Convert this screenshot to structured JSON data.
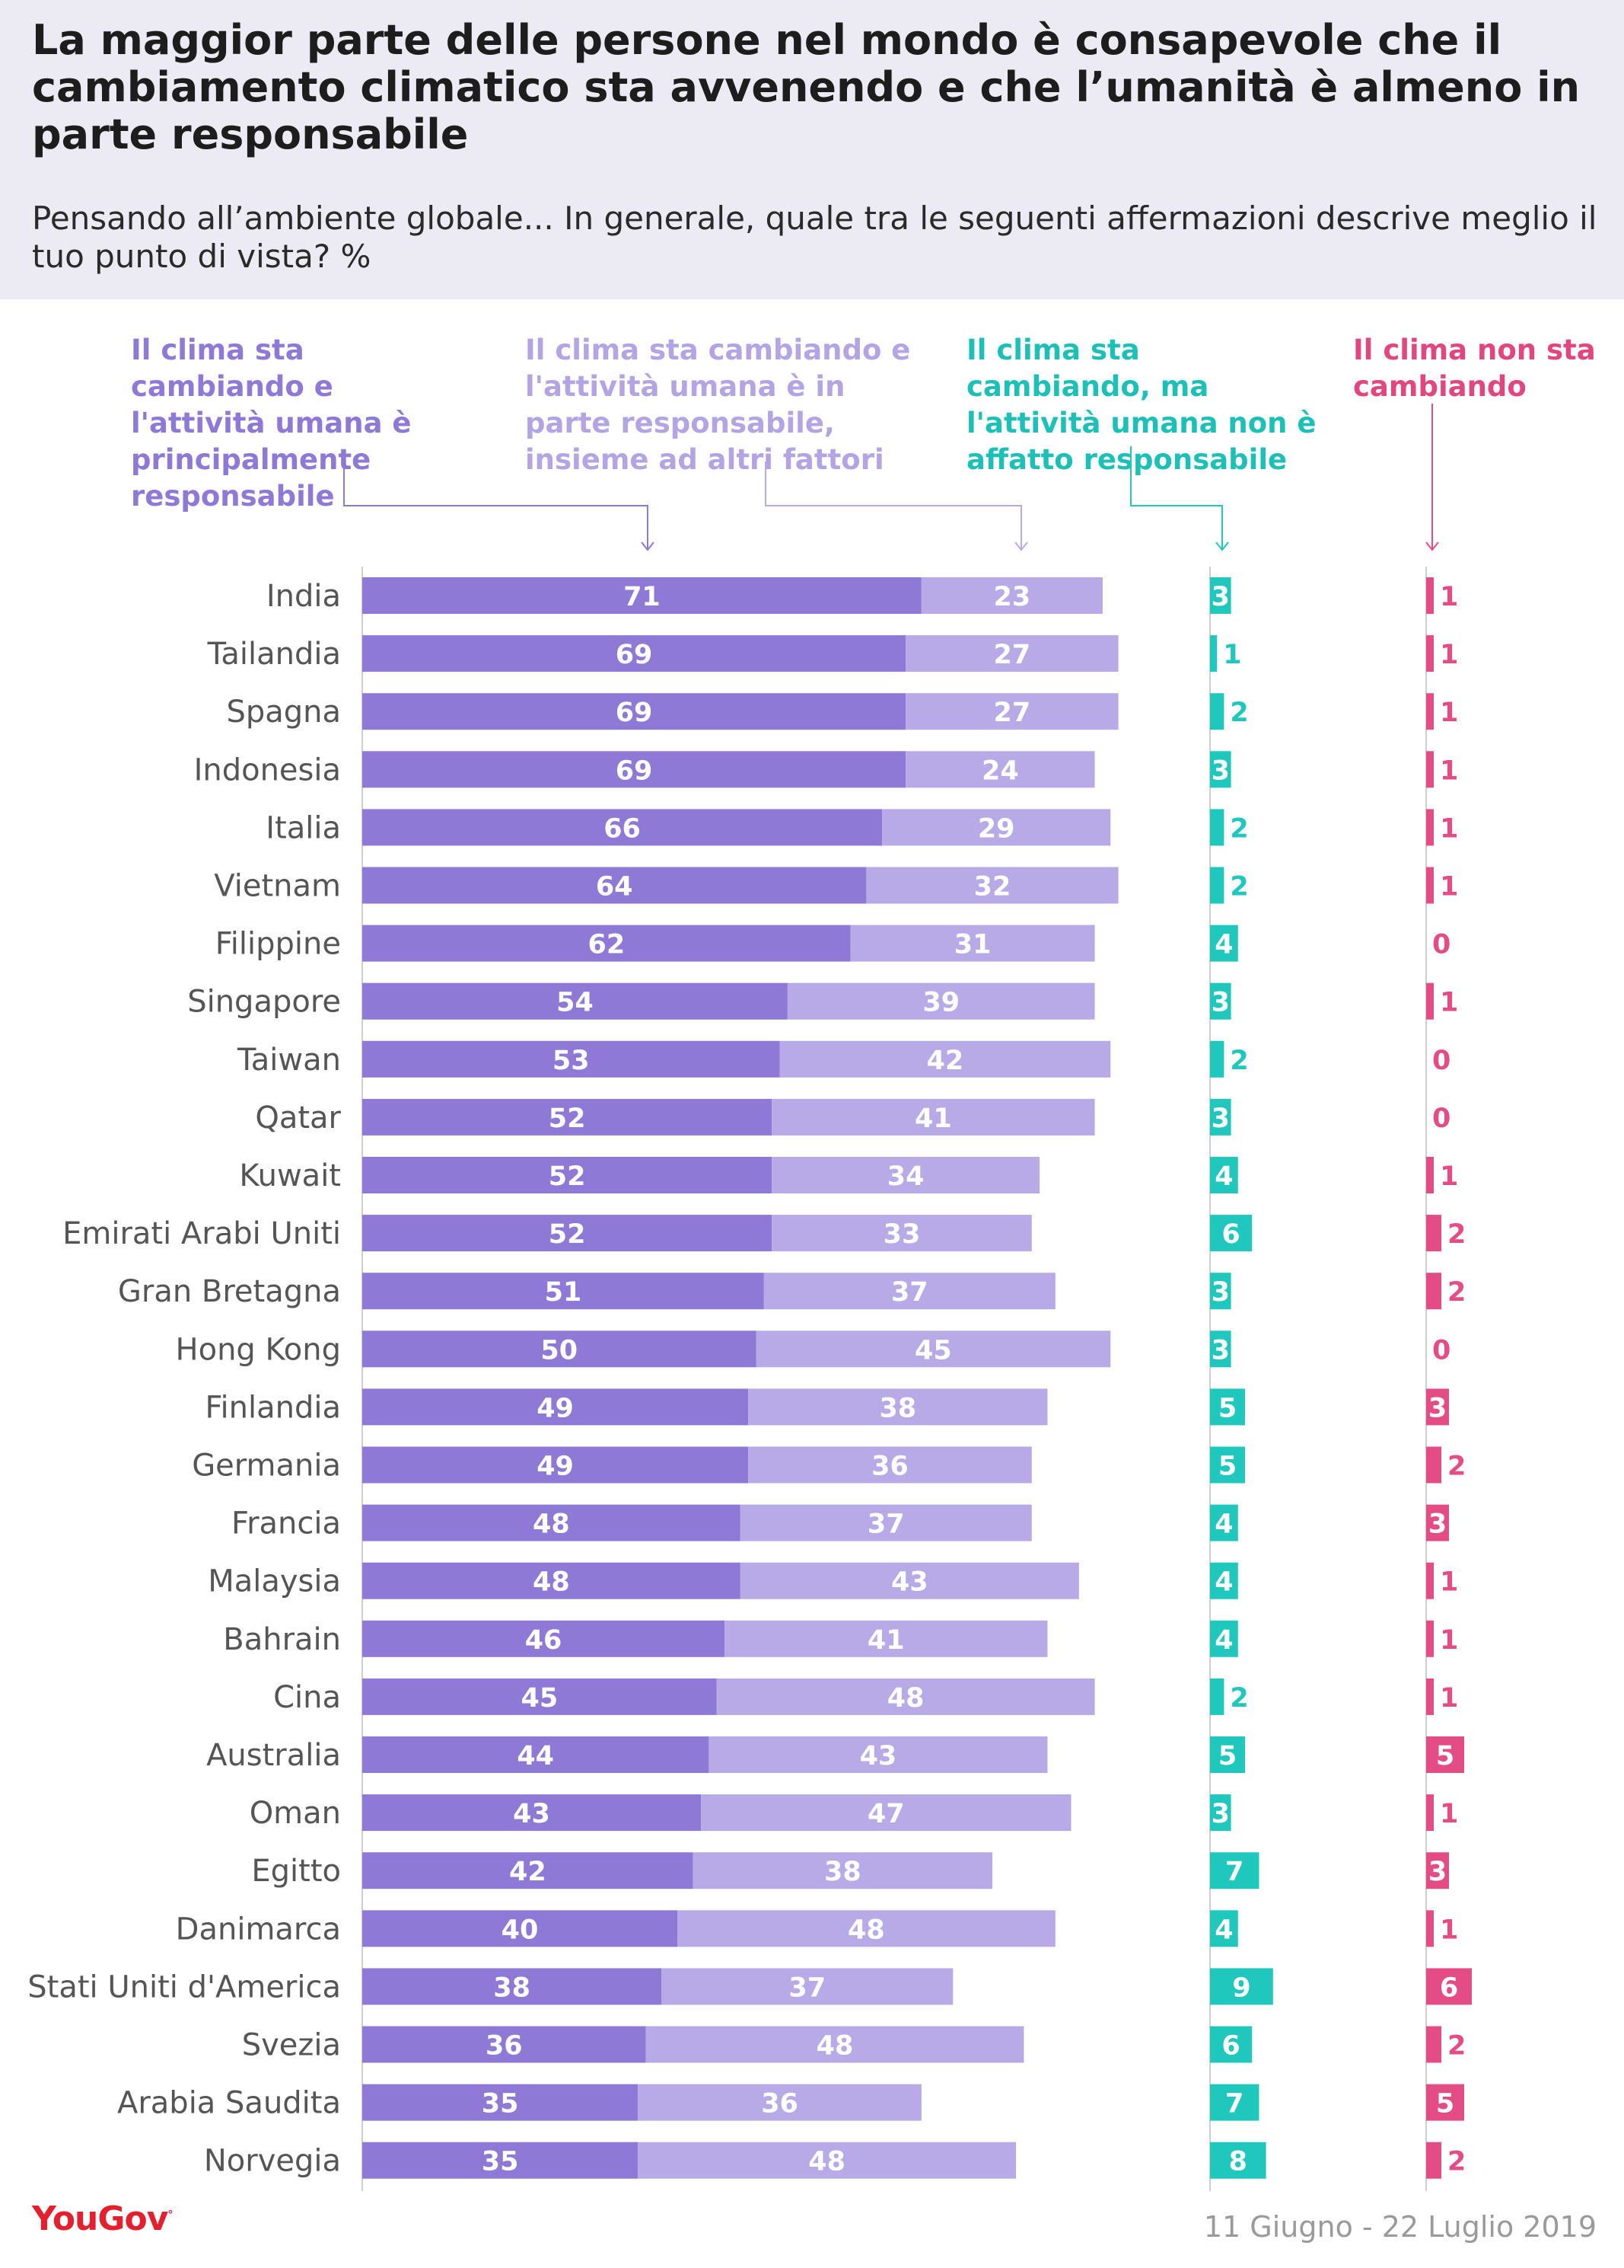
{
  "title": "La maggior parte delle persone nel mondo è consapevole che il cambiamento climatico sta avvenendo e che l’umanità è almeno in parte responsabile",
  "subtitle": "Pensando all’ambiente globale... In generale, quale tra le seguenti affermazioni descrive meglio il tuo punto di vista? %",
  "footer": {
    "logo": "YouGov",
    "date": "11 Giugno - 22 Luglio 2019"
  },
  "colors": {
    "main": "#8e79d6",
    "part": "#b8aae6",
    "natural": "#1fc7bd",
    "notchanging": "#e44c85"
  },
  "chart_data": {
    "type": "bar",
    "categories": [
      "India",
      "Tailandia",
      "Spagna",
      "Indonesia",
      "Italia",
      "Vietnam",
      "Filippine",
      "Singapore",
      "Taiwan",
      "Qatar",
      "Kuwait",
      "Emirati Arabi Uniti",
      "Gran Bretagna",
      "Hong Kong",
      "Finlandia",
      "Germania",
      "Francia",
      "Malaysia",
      "Bahrain",
      "Cina",
      "Australia",
      "Oman",
      "Egitto",
      "Danimarca",
      "Stati Uniti d'America",
      "Svezia",
      "Arabia Saudita",
      "Norvegia"
    ],
    "series": [
      {
        "name": "Il clima sta cambiando e l'attività umana è principalmente responsabile",
        "values": [
          71,
          69,
          69,
          69,
          66,
          64,
          62,
          54,
          53,
          52,
          52,
          52,
          51,
          50,
          49,
          49,
          48,
          48,
          46,
          45,
          44,
          43,
          42,
          40,
          38,
          36,
          35,
          35
        ]
      },
      {
        "name": "Il clima sta cambiando e l'attività umana è in parte responsabile, insieme ad altri fattori",
        "values": [
          23,
          27,
          27,
          24,
          29,
          32,
          31,
          39,
          42,
          41,
          34,
          33,
          37,
          45,
          38,
          36,
          37,
          43,
          41,
          48,
          43,
          47,
          38,
          48,
          37,
          48,
          36,
          48
        ]
      },
      {
        "name": "Il clima sta cambiando, ma l'attività umana non è affatto responsabile",
        "values": [
          3,
          1,
          2,
          3,
          2,
          2,
          4,
          3,
          2,
          3,
          4,
          6,
          3,
          3,
          5,
          5,
          4,
          4,
          4,
          2,
          5,
          3,
          7,
          4,
          9,
          6,
          7,
          8
        ]
      },
      {
        "name": "Il clima non sta cambiando",
        "values": [
          1,
          1,
          1,
          1,
          1,
          1,
          0,
          1,
          0,
          0,
          1,
          2,
          2,
          0,
          3,
          2,
          3,
          1,
          1,
          1,
          5,
          1,
          3,
          1,
          6,
          2,
          5,
          2
        ]
      }
    ]
  }
}
